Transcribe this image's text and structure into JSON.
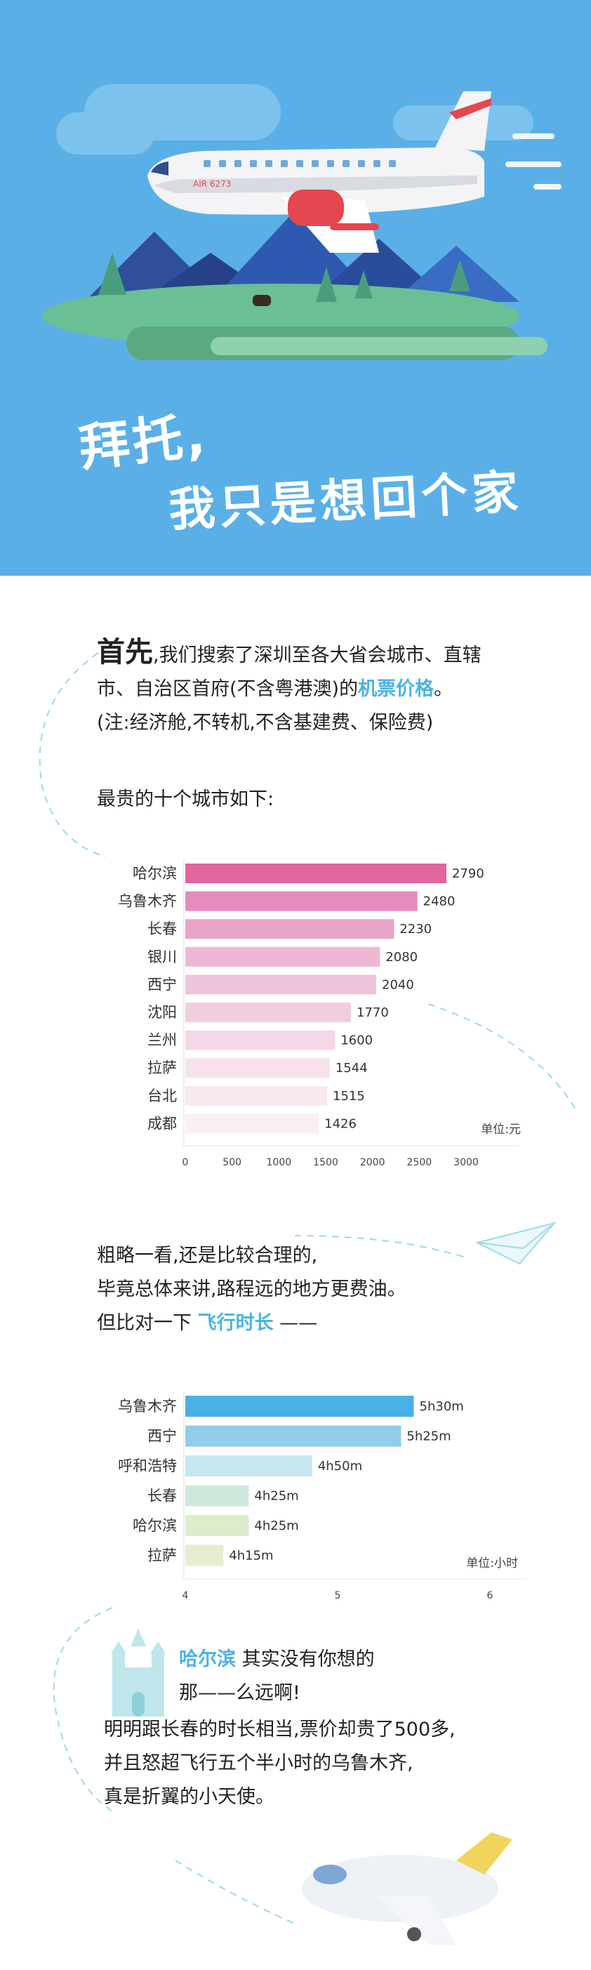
{
  "hero": {
    "title_line1": "拜托,",
    "title_line2": "我只是想回个家",
    "plane_label": "AIR 6273",
    "bg_color": "#5ab0e6"
  },
  "intro": {
    "lead": "首先",
    "line1_rest": ",我们搜索了深圳至各大省会城市、直辖",
    "line2_before": "市、自治区首府(不含粤港澳)的",
    "line2_accent": "机票价格",
    "line2_after": "。",
    "note": "(注:经济舱,不转机,不含基建费、保险费)",
    "list_intro": "最贵的十个城市如下:"
  },
  "middle": {
    "line1": "粗略一看,还是比较合理的,",
    "line2": "毕竟总体来讲,路程远的地方更费油。",
    "line3_before": "但比对一下 ",
    "line3_accent": "飞行时长",
    "line3_after": " ——"
  },
  "ending": {
    "line1_accent": "哈尔滨",
    "line1_rest": " 其实没有你想的",
    "line2": "那——么远啊!",
    "line3": "明明跟长春的时长相当,票价却贵了500多,",
    "line4": "并且怒超飞行五个半小时的乌鲁木齐,",
    "line5": "真是折翼的小天使。"
  },
  "chart_data": [
    {
      "type": "bar",
      "orientation": "horizontal",
      "categories": [
        "哈尔滨",
        "乌鲁木齐",
        "长春",
        "银川",
        "西宁",
        "沈阳",
        "兰州",
        "拉萨",
        "台北",
        "成都"
      ],
      "values": [
        2790,
        2480,
        2230,
        2080,
        2040,
        1770,
        1600,
        1544,
        1515,
        1426
      ],
      "value_labels": [
        "2790",
        "2480",
        "2230",
        "2080",
        "2040",
        "1770",
        "1600",
        "1544",
        "1515",
        "1426"
      ],
      "xlim": [
        0,
        3000
      ],
      "xticks": [
        "0",
        "500",
        "1000",
        "1500",
        "2000",
        "2500",
        "3000"
      ],
      "unit_label": "单位:元",
      "colors": [
        "#e0669e",
        "#e48dbd",
        "#e9a4c9",
        "#edb8d4",
        "#efc3da",
        "#f2cde0",
        "#f5d8e7",
        "#f7e1ec",
        "#f9e8f0",
        "#fbeff5"
      ]
    },
    {
      "type": "bar",
      "orientation": "horizontal",
      "categories": [
        "乌鲁木齐",
        "西宁",
        "呼和浩特",
        "长春",
        "哈尔滨",
        "拉萨"
      ],
      "values": [
        5.5,
        5.4167,
        4.8333,
        4.4167,
        4.4167,
        4.25
      ],
      "value_labels": [
        "5h30m",
        "5h25m",
        "4h50m",
        "4h25m",
        "4h25m",
        "4h15m"
      ],
      "xlim": [
        4,
        6
      ],
      "xticks": [
        "4",
        "5",
        "6"
      ],
      "unit_label": "单位:小时",
      "colors": [
        "#49b1e6",
        "#8fcdea",
        "#c8e6ef",
        "#cfe8dc",
        "#ddeccb",
        "#e5efcf"
      ]
    }
  ]
}
